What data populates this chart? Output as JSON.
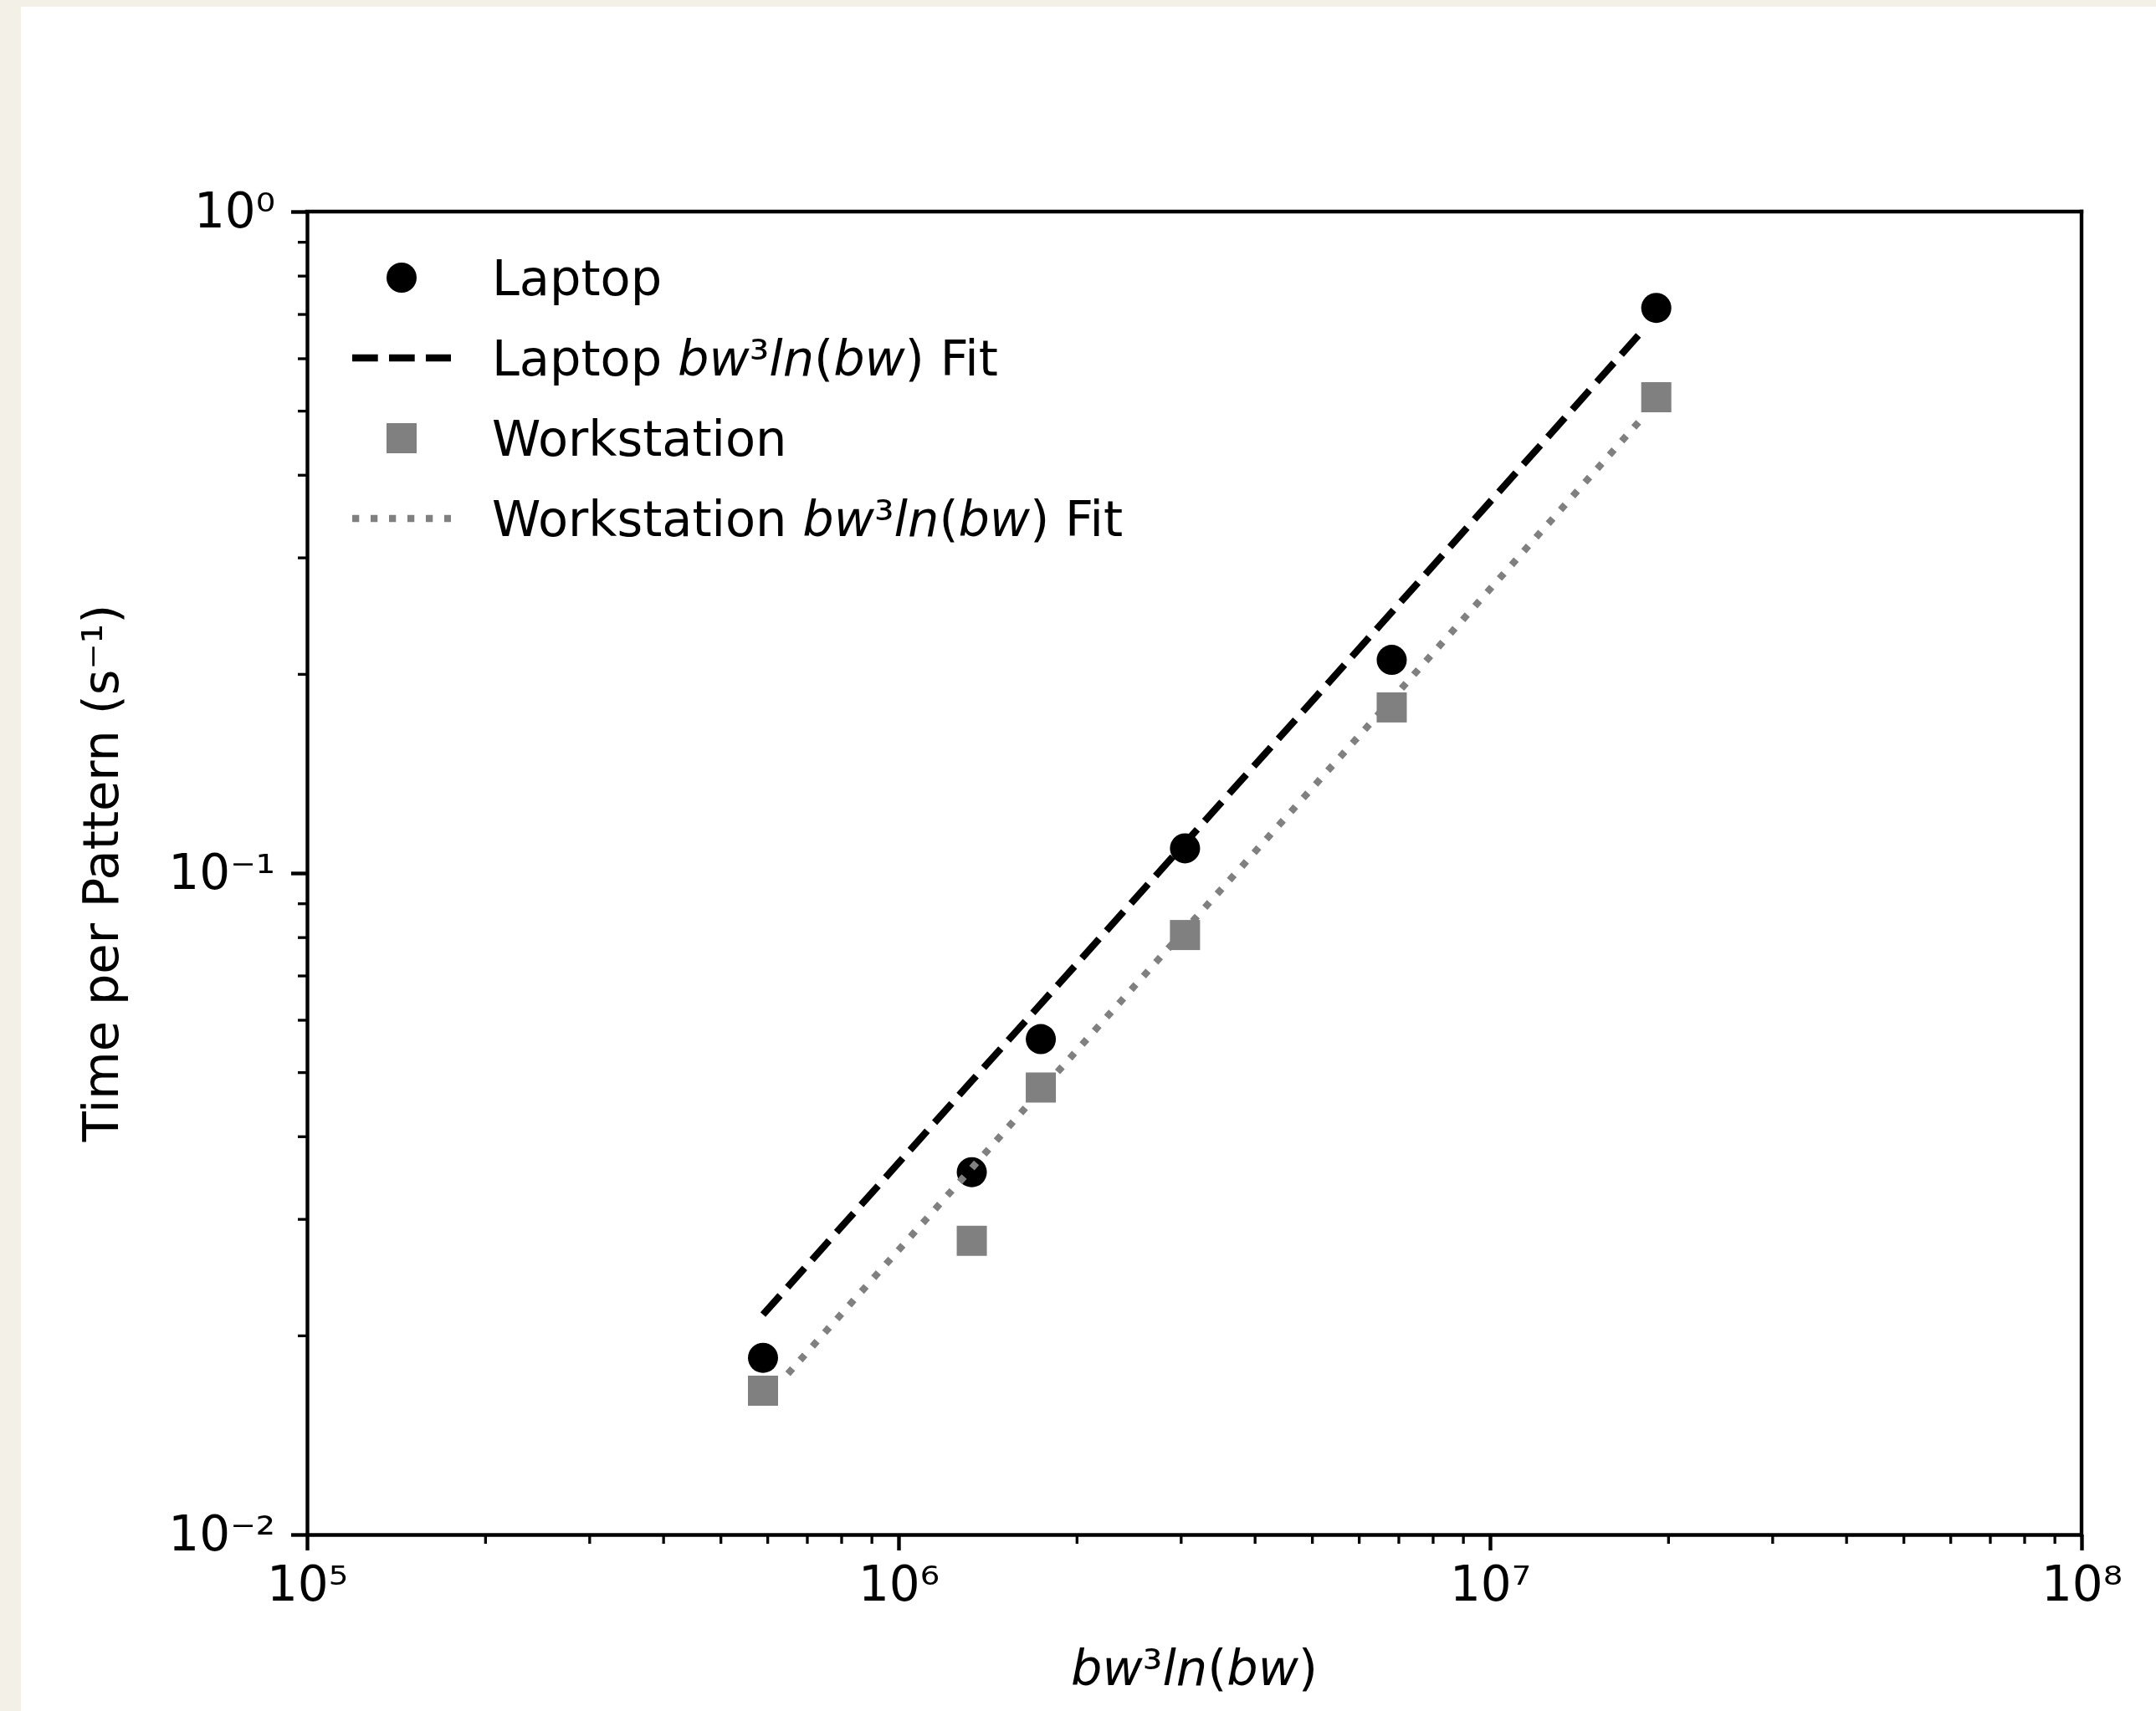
{
  "chart_data": {
    "type": "scatter",
    "xlabel": "bw³ln(bw)",
    "ylabel": "Time per Pattern (s⁻¹)",
    "log": "xy",
    "legend": "top left",
    "xlim": [
      100000,
      100000000
    ],
    "xticks": [
      {
        "value": 100000,
        "label": "10⁵"
      },
      {
        "value": 200000,
        "label": null
      },
      {
        "value": 300000,
        "label": null
      },
      {
        "value": 400000,
        "label": null
      },
      {
        "value": 500000,
        "label": null
      },
      {
        "value": 600000,
        "label": null
      },
      {
        "value": 700000,
        "label": null
      },
      {
        "value": 800000,
        "label": null
      },
      {
        "value": 900000,
        "label": null
      },
      {
        "value": 1000000,
        "label": "10⁶"
      },
      {
        "value": 2000000,
        "label": null
      },
      {
        "value": 3000000,
        "label": null
      },
      {
        "value": 4000000,
        "label": null
      },
      {
        "value": 5000000,
        "label": null
      },
      {
        "value": 6000000,
        "label": null
      },
      {
        "value": 7000000,
        "label": null
      },
      {
        "value": 8000000,
        "label": null
      },
      {
        "value": 9000000,
        "label": null
      },
      {
        "value": 10000000,
        "label": "10⁷"
      },
      {
        "value": 20000000,
        "label": null
      },
      {
        "value": 30000000,
        "label": null
      },
      {
        "value": 40000000,
        "label": null
      },
      {
        "value": 50000000,
        "label": null
      },
      {
        "value": 60000000,
        "label": null
      },
      {
        "value": 70000000,
        "label": null
      },
      {
        "value": 80000000,
        "label": null
      },
      {
        "value": 90000000,
        "label": null
      },
      {
        "value": 100000000,
        "label": "10⁸"
      }
    ],
    "ylim": [
      0.01,
      1
    ],
    "yticks": [
      {
        "value": 0.01,
        "label": "10⁻²"
      },
      {
        "value": 0.02,
        "label": null
      },
      {
        "value": 0.03,
        "label": null
      },
      {
        "value": 0.04,
        "label": null
      },
      {
        "value": 0.05,
        "label": null
      },
      {
        "value": 0.06,
        "label": null
      },
      {
        "value": 0.07,
        "label": null
      },
      {
        "value": 0.08,
        "label": null
      },
      {
        "value": 0.09,
        "label": null
      },
      {
        "value": 0.1,
        "label": "10⁻¹"
      },
      {
        "value": 0.2,
        "label": null
      },
      {
        "value": 0.3,
        "label": null
      },
      {
        "value": 0.4,
        "label": null
      },
      {
        "value": 0.5,
        "label": null
      },
      {
        "value": 0.6,
        "label": null
      },
      {
        "value": 0.7,
        "label": null
      },
      {
        "value": 0.8,
        "label": null
      },
      {
        "value": 0.9,
        "label": null
      },
      {
        "value": 1,
        "label": "10⁰"
      }
    ],
    "series": [
      {
        "name": "Laptop",
        "type": "scatter",
        "marker": "circle",
        "color": "#000000",
        "x": [
          590000,
          1330000,
          1740000,
          3050000,
          6820000,
          19100000
        ],
        "values": [
          0.0185,
          0.0353,
          0.0561,
          0.109,
          0.21,
          0.715
        ]
      },
      {
        "name": "Laptop bw³ln(bw) Fit",
        "type": "line",
        "line_style": "dashed",
        "marker": "none",
        "color": "#000000",
        "x": [
          590000,
          1330000,
          1740000,
          3050000,
          6820000,
          18200000
        ],
        "values": [
          0.0215,
          0.0485,
          0.0634,
          0.111,
          0.248,
          0.664
        ]
      },
      {
        "name": "Workstation",
        "type": "scatter",
        "marker": "square",
        "color": "#808080",
        "x": [
          590000,
          1330000,
          1740000,
          3050000,
          6820000,
          19100000
        ],
        "values": [
          0.0165,
          0.0278,
          0.0474,
          0.0806,
          0.178,
          0.524
        ]
      },
      {
        "name": "Workstation bw³ln(bw) Fit",
        "type": "line",
        "line_style": "dotted",
        "marker": "none",
        "color": "#808080",
        "x": [
          650000,
          1330000,
          1740000,
          3050000,
          6820000,
          18000000
        ],
        "values": [
          0.0175,
          0.0358,
          0.0469,
          0.0821,
          0.183,
          0.485
        ]
      }
    ]
  }
}
